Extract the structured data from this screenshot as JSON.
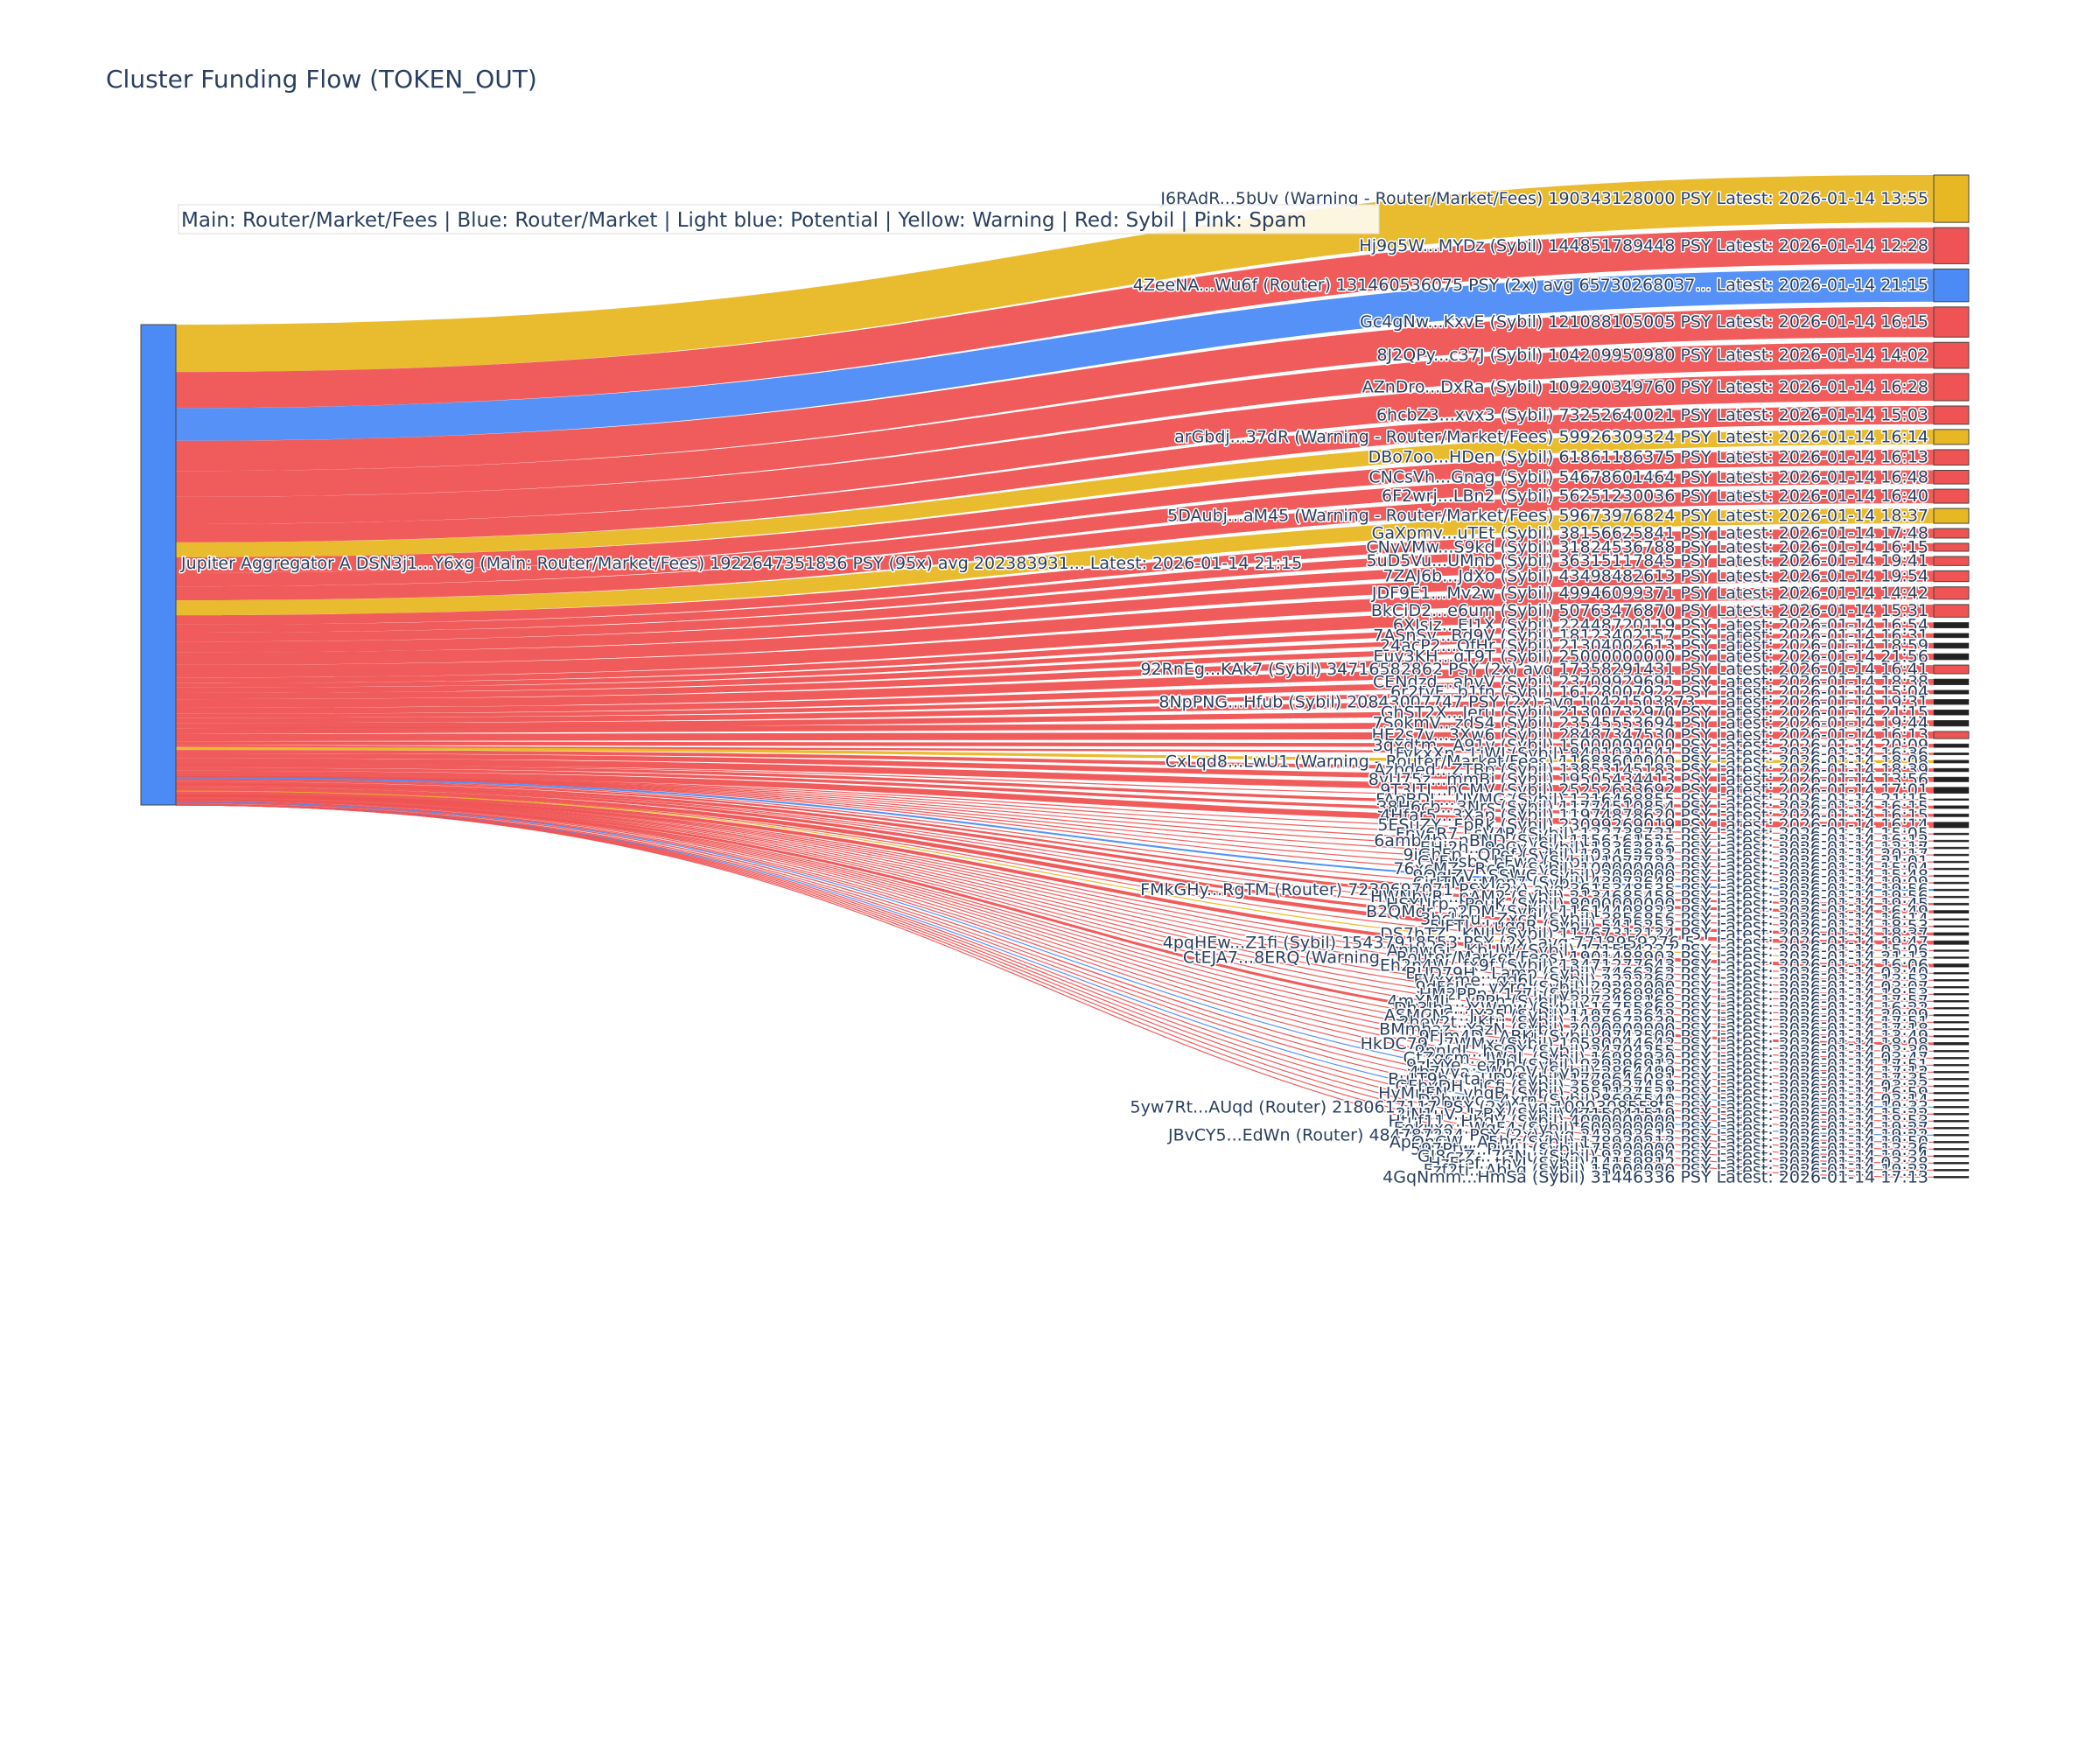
{
  "chart_data": {
    "type": "sankey",
    "title": "Cluster Funding Flow (TOKEN_OUT)",
    "legend_note": "Main: Router/Market/Fees  |  Blue: Router/Market | Light blue: Potential | Yellow: Warning | Red: Sybil | Pink: Spam",
    "source": {
      "label": "Jupiter Aggregator A DSN3j1...Y6xg (Main: Router/Market/Fees) 1922647351836 PSY (95x) avg 202383931... Latest: 2026-01-14 21:15",
      "category": "main",
      "value": 1922647351836
    },
    "colors": {
      "main": "#4C8BF5",
      "router": "#4C8BF5",
      "potential": "#9EC5FE",
      "warning": "#E8B724",
      "sybil": "#EF5353",
      "spam": "#F9A8D4",
      "thin_node": "#222222"
    },
    "targets": [
      {
        "label": "J6RAdR...5bUv (Warning - Router/Market/Fees) 190343128000 PSY Latest: 2026-01-14 13:55",
        "category": "warning",
        "value": 190343128000
      },
      {
        "label": "Hj9g5W...MYDz (Sybil) 144851789448 PSY Latest: 2026-01-14 12:28",
        "category": "sybil",
        "value": 144851789448
      },
      {
        "label": "4ZeeNA...Wu6f (Router) 131460536075 PSY (2x) avg 65730268037... Latest: 2026-01-14 21:15",
        "category": "router",
        "value": 131460536075
      },
      {
        "label": "Gc4gNw...KxvE (Sybil) 121088105005 PSY Latest: 2026-01-14 16:15",
        "category": "sybil",
        "value": 121088105005
      },
      {
        "label": "8J2QPy...c37J (Sybil) 104209950980 PSY Latest: 2026-01-14 14:02",
        "category": "sybil",
        "value": 104209950980
      },
      {
        "label": "AZnDro...DxRa (Sybil) 109290349760 PSY Latest: 2026-01-14 16:28",
        "category": "sybil",
        "value": 109290349760
      },
      {
        "label": "6hcbZ3...xvx3 (Sybil) 73252640021 PSY Latest: 2026-01-14 15:03",
        "category": "sybil",
        "value": 73252640021
      },
      {
        "label": "arGbdj...37dR (Warning - Router/Market/Fees) 59926309324 PSY Latest: 2026-01-14 16:14",
        "category": "warning",
        "value": 59926309324
      },
      {
        "label": "DBo7oo...HDen (Sybil) 61861186375 PSY Latest: 2026-01-14 16:13",
        "category": "sybil",
        "value": 61861186375
      },
      {
        "label": "CNCsVh...Gnag (Sybil) 54678601464 PSY Latest: 2026-01-14 16:48",
        "category": "sybil",
        "value": 54678601464
      },
      {
        "label": "6F2wrj...LBn2 (Sybil) 56251230036 PSY Latest: 2026-01-14 16:40",
        "category": "sybil",
        "value": 56251230036
      },
      {
        "label": "5DAubj...aM45 (Warning - Router/Market/Fees) 59673976824 PSY Latest: 2026-01-14 18:37",
        "category": "warning",
        "value": 59673976824
      },
      {
        "label": "GaXpmv...uTEt (Sybil) 38156625841 PSY Latest: 2026-01-14 17:48",
        "category": "sybil",
        "value": 38156625841
      },
      {
        "label": "CNyVMw...S9kd (Sybil) 31824536788 PSY Latest: 2026-01-14 16:15",
        "category": "sybil",
        "value": 31824536788
      },
      {
        "label": "5uD5Vu...UMnb (Sybil) 36315117845 PSY Latest: 2026-01-14 19:41",
        "category": "sybil",
        "value": 36315117845
      },
      {
        "label": "7ZAJ6b...JdXo (Sybil) 43498482613 PSY Latest: 2026-01-14 19:54",
        "category": "sybil",
        "value": 43498482613
      },
      {
        "label": "JDF9E1...Mv2w (Sybil) 49946099371 PSY Latest: 2026-01-14 14:42",
        "category": "sybil",
        "value": 49946099371
      },
      {
        "label": "BkCiD2...e6um (Sybil) 50763476870 PSY Latest: 2026-01-14 15:31",
        "category": "sybil",
        "value": 50763476870
      },
      {
        "label": "6XJsiz...EJ1X (Sybil) 22448720119 PSY Latest: 2026-01-14 16:54",
        "category": "sybil",
        "value": 22448720119
      },
      {
        "label": "7ASnSv...Bd9V (Sybil) 18123402157 PSY Latest: 2026-01-14 16:31",
        "category": "sybil",
        "value": 18123402157
      },
      {
        "label": "24acP2...QfHr (Sybil) 21304002613 PSY Latest: 2026-01-14 18:59",
        "category": "sybil",
        "value": 21304002613
      },
      {
        "label": "Euy3KH...qT9T (Sybil) 25000000000 PSY Latest: 2026-01-14 21:56",
        "category": "sybil",
        "value": 25000000000
      },
      {
        "label": "92RnEg...KAk7 (Sybil) 34716582862 PSY (2x) avg 17358291431 PSY Latest: 2026-01-14 16:41",
        "category": "sybil",
        "value": 34716582862
      },
      {
        "label": "CENdzd...ahvV (Sybil) 23709929691 PSY Latest: 2026-01-14 18:38",
        "category": "sybil",
        "value": 23709929691
      },
      {
        "label": "6r2tyF...b1fn (Sybil) 16128007922 PSY Latest: 2026-01-14 15:04",
        "category": "sybil",
        "value": 16128007922
      },
      {
        "label": "8NpPNG...Hfub (Sybil) 20843007747 PSY (2x) avg 10421503873... Latest: 2026-01-14 19:31",
        "category": "sybil",
        "value": 20843007747
      },
      {
        "label": "GhST2X...Jeru (Sybil) 21300732970 PSY Latest: 2026-01-14 21:15",
        "category": "sybil",
        "value": 21300732970
      },
      {
        "label": "7SokmV...zdS4 (Sybil) 23545553694 PSY Latest: 2026-01-14 19:44",
        "category": "sybil",
        "value": 23545553694
      },
      {
        "label": "HE2s7v...3Xw6 (Sybil) 28487347530 PSY Latest: 2026-01-14 16:13",
        "category": "sybil",
        "value": 28487347530
      },
      {
        "label": "3qxdtm...A91v (Sybil) 15000000000 PSY Latest: 2026-01-14 20:09",
        "category": "sybil",
        "value": 15000000000
      },
      {
        "label": "FykxXn...LiWJ (Sybil) 8401031541 PSY Latest: 2026-01-14 16:36",
        "category": "sybil",
        "value": 8401031541
      },
      {
        "label": "CxLqd8...LwU1 (Warning - Router/Market/Fees) 11688600000 PSY Latest: 2026-01-14 18:08",
        "category": "warning",
        "value": 11688600000
      },
      {
        "label": "Azbded...ZTBp (Sybil) 13853145183 PSY Latest: 2026-01-14 18:39",
        "category": "sybil",
        "value": 13853145183
      },
      {
        "label": "8yU75z...mmBi (Sybil) 19505434413 PSY Latest: 2026-01-14 13:56",
        "category": "sybil",
        "value": 19505434413
      },
      {
        "label": "9T3JTJ...nCMV (Sybil) 25252633692 PSY Latest: 2026-01-14 17:01",
        "category": "sybil",
        "value": 25252633692
      },
      {
        "label": "FApBDL...UVMG (Sybil) 1216468855 PSY Latest: 2026-01-14 21:15",
        "category": "sybil",
        "value": 1216468855
      },
      {
        "label": "38H6cb...3Nrs (Sybil) 11774510854 PSY Latest: 2026-01-14 16:15",
        "category": "sybil",
        "value": 11774510854
      },
      {
        "label": "4Hfar5...3Xap (Sybil) 11974878620 PSY Latest: 2026-01-14 16:15",
        "category": "sybil",
        "value": 11974878620
      },
      {
        "label": "5ESuZY...FpRk (Sybil) 23099269019 PSY Latest: 2026-01-14 16:14",
        "category": "sybil",
        "value": 23099269019
      },
      {
        "label": "Fpv6R7...sV4R (Sybil) 122738721 PSY Latest: 2026-01-14 15:05",
        "category": "sybil",
        "value": 122738721
      },
      {
        "label": "6amb4b...nBND (Sybil) 1156161525 PSY Latest: 2026-01-14 16:12",
        "category": "sybil",
        "value": 1156161525
      },
      {
        "label": "EHi2h...9eCy (Sybil) 18362816 PSY Latest: 2026-01-14 12:17",
        "category": "sybil",
        "value": 18362816
      },
      {
        "label": "9iGhFp...QPef (Sybil) 103452681 PSY Latest: 2026-01-14 20:17",
        "category": "sybil",
        "value": 103452681
      },
      {
        "label": "CyFvsb...bFwe (Sybil) 1977723 PSY Latest: 2026-01-14 21:01",
        "category": "sybil",
        "value": 1977723
      },
      {
        "label": "76xcMZ...Rc6a (Sybil) 100000000 PSY Latest: 2026-01-14 15:04",
        "category": "sybil",
        "value": 100000000
      },
      {
        "label": "9QqJZV...SSWC (Sybil) 2000000 PSY Latest: 2026-01-14 15:48",
        "category": "sybil",
        "value": 2000000
      },
      {
        "label": "CirJTM...Mep7 (Sybil) 43972648 PSY Latest: 2026-01-14 19:09",
        "category": "sybil",
        "value": 43972648
      },
      {
        "label": "FMkGHy...RgTM (Router) 7230697071 PSY (2x) avg 3615348535 PSY Latest: 2026-01-14 19:56",
        "category": "router",
        "value": 7230697071
      },
      {
        "label": "HWNbvR...pAM2 (Sybil) 2134685458 PSY Latest: 2026-01-14 19:56",
        "category": "sybil",
        "value": 2134685458
      },
      {
        "label": "HSYUrp...PouK (Sybil) 8000000000 PSY Latest: 2026-01-14 19:45",
        "category": "sybil",
        "value": 8000000000
      },
      {
        "label": "B2QMdr...a2DM (Sybil) 11614408823 PSY Latest: 2026-01-14 16:49",
        "category": "sybil",
        "value": 11614408823
      },
      {
        "label": "3hcLnu...Zxcd (Sybil) 3856856 PSY Latest: 2026-01-14 16:14",
        "category": "sybil",
        "value": 3856856
      },
      {
        "label": "5JFTJ...LuqqR (Sybil) 5415253 PSY Latest: 2026-01-14 18:53",
        "category": "sybil",
        "value": 5415253
      },
      {
        "label": "DS7bTZ...KNJJ (Sybil) 11767312124 PSY Latest: 2026-01-14 18:37",
        "category": "sybil",
        "value": 11767312124
      },
      {
        "label": "4pqHEw...Z1fi (Sybil) 15437918553 PSY (2x) avg 7718959276.5... Latest: 2026-01-14 19:47",
        "category": "sybil",
        "value": 15437918553
      },
      {
        "label": "AnhwGi...KbUW (Sybil) 171554237 PSY Latest: 2026-01-14 15:06",
        "category": "sybil",
        "value": 171554237
      },
      {
        "label": "CtEJA7...8ERQ (Warning - Router/Market/Fees) 1901488903 PSY Latest: 2026-01-14 21:13",
        "category": "warning",
        "value": 1901488903
      },
      {
        "label": "Eh2n4W...fx9f (Sybil) 13471277643 PSY Latest: 2026-01-14 16:06",
        "category": "sybil",
        "value": 13471277643
      },
      {
        "label": "BUD79H...Lamp (Sybil) 7466262 PSY Latest: 2026-01-14 03:40",
        "category": "sybil",
        "value": 7466262
      },
      {
        "label": "FVxxme...qd6L (Sybil) 2222363 PSY Latest: 2026-01-14 13:53",
        "category": "sybil",
        "value": 2222363
      },
      {
        "label": "9dFsLs...yXrg (Sybil) 29298000 PSY Latest: 2026-01-14 03:07",
        "category": "sybil",
        "value": 29298000
      },
      {
        "label": "HM2PPp...1z7i (Sybil) 3869895 PSY Latest: 2026-01-14 18:53",
        "category": "sybil",
        "value": 3869895
      },
      {
        "label": "4mXMJj...yPPh (Sybil) 3273488168 PSY Latest: 2026-01-14 17:57",
        "category": "sybil",
        "value": 3273488168
      },
      {
        "label": "Dh3Jha...XWmw (Sybil) 16755868 PSY Latest: 2026-01-14 16:22",
        "category": "sybil",
        "value": 16755868
      },
      {
        "label": "ASMCNc...JY35 (Sybil) 1197642642 PSY Latest: 2026-01-14 20:09",
        "category": "sybil",
        "value": 1197642642
      },
      {
        "label": "2hev2t...JKtu (Sybil) 1486872839 PSY Latest: 2026-01-14 17:51",
        "category": "sybil",
        "value": 1486872839
      },
      {
        "label": "BMmhaz...YazN (Sybil) 2000000000 PSY Latest: 2026-01-14 17:18",
        "category": "sybil",
        "value": 2000000000
      },
      {
        "label": "9Fjm4D...ABKi (Sybil) 9743500 PSY Latest: 2026-01-14 13:49",
        "category": "sybil",
        "value": 9743500
      },
      {
        "label": "HkDC79...7WMx (Sybil) 10580044642 PSY Latest: 2026-01-14 18:08",
        "category": "sybil",
        "value": 10580044642
      },
      {
        "label": "9pnJdJ...bSQY (Sybil) 24704255 PSY Latest: 2026-01-14 03:30",
        "category": "sybil",
        "value": 24704255
      },
      {
        "label": "GtZqcm...JWqL (Sybil) 16988930 PSY Latest: 2026-01-14 03:47",
        "category": "sybil",
        "value": 16988930
      },
      {
        "label": "9zLYYe...ezPh (Sybil) 929296913 PSY Latest: 2026-01-14 17:51",
        "category": "sybil",
        "value": 929296913
      },
      {
        "label": "4b7vya...WpQV (Sybil) 2864499 PSY Latest: 2026-01-14 17:12",
        "category": "sybil",
        "value": 2864499
      },
      {
        "label": "BuLT9b...taUD (Sybil) 1779646081 PSY Latest: 2026-01-14 17:35",
        "category": "sybil",
        "value": 1779646081
      },
      {
        "label": "GFbyDH...iCfi (Sybil) 3586927458 PSY Latest: 2026-01-14 03:23",
        "category": "sybil",
        "value": 3586927458
      },
      {
        "label": "HyMuFN...vhqB (Sybil) 3851137521 PSY Latest: 2026-01-14 16:59",
        "category": "sybil",
        "value": 3851137521
      },
      {
        "label": "Dpbwyc...4xrn (Sybil) 8696540 PSY Latest: 2026-01-14 03:14",
        "category": "sybil",
        "value": 8696540
      },
      {
        "label": "5yw7Rt...AUqd (Router) 2180617117 PSY (2x) avg 1090308558.5 PSY Latest: 2026-01-14 19:33",
        "category": "router",
        "value": 2180617117
      },
      {
        "label": "2iN1uV...JzBX (Sybil) 4715041519 PSY Latest: 2026-01-14 15:22",
        "category": "sybil",
        "value": 4715041519
      },
      {
        "label": "Htuf11...HbdV (Sybil) 4000000000 PSY Latest: 2026-01-14 18:53",
        "category": "sybil",
        "value": 4000000000
      },
      {
        "label": "Eokuxo...WqF4 (Sybil) 600000000 PSY Latest: 2026-01-14 19:27",
        "category": "sybil",
        "value": 600000000
      },
      {
        "label": "JBvCY5...EdWn (Router) 484787224 PSY (2x) avg 242393612 PSY Latest: 2026-01-14 19:22",
        "category": "router",
        "value": 484787224
      },
      {
        "label": "ApQnCW...A5hr (Sybil) 178930213 PSY Latest: 2026-01-14 19:50",
        "category": "sybil",
        "value": 178930213
      },
      {
        "label": "597Ptw...PiwU (Sybil) 75000000 PSY Latest: 2026-01-14 13:36",
        "category": "sybil",
        "value": 75000000
      },
      {
        "label": "GJ8czZ...7GNu (Sybil) 9239994 PSY Latest: 2026-01-14 19:34",
        "category": "sybil",
        "value": 9239994
      },
      {
        "label": "HzFref...tbyJ (Sybil) 14159812 PSY Latest: 2026-01-14 03:38",
        "category": "sybil",
        "value": 14159812
      },
      {
        "label": "Fzf2ti...AbLg (Sybil) 15000000 PSY Latest: 2026-01-14 19:22",
        "category": "sybil",
        "value": 15000000
      },
      {
        "label": "4GqNmm...HmSa (Sybil) 31446336 PSY Latest: 2026-01-14 17:13",
        "category": "sybil",
        "value": 31446336
      }
    ]
  }
}
